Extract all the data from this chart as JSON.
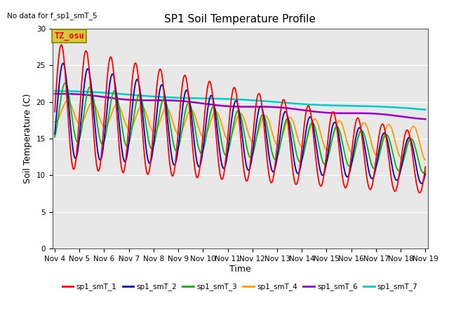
{
  "title": "SP1 Soil Temperature Profile",
  "no_data_text": "No data for f_sp1_smT_5",
  "tz_label": "TZ_osu",
  "ylabel": "Soil Temperature (C)",
  "xlabel": "Time",
  "ylim": [
    0,
    30
  ],
  "yticks": [
    0,
    5,
    10,
    15,
    20,
    25,
    30
  ],
  "xtick_labels": [
    "Nov 4",
    "Nov 5",
    "Nov 6",
    "Nov 7",
    "Nov 8",
    "Nov 9",
    "Nov 10",
    "Nov 11",
    "Nov 12",
    "Nov 13",
    "Nov 14",
    "Nov 15",
    "Nov 16",
    "Nov 17",
    "Nov 18",
    "Nov 19"
  ],
  "colors": {
    "sp1_smT_1": "#ff0000",
    "sp1_smT_2": "#0000cc",
    "sp1_smT_3": "#00bb00",
    "sp1_smT_4": "#ff9900",
    "sp1_smT_6": "#9900cc",
    "sp1_smT_7": "#00cccc"
  },
  "lw": {
    "sp1_smT_1": 1.3,
    "sp1_smT_2": 1.3,
    "sp1_smT_3": 1.3,
    "sp1_smT_4": 1.3,
    "sp1_smT_6": 1.8,
    "sp1_smT_7": 1.8
  },
  "background_color": "#e8e8e8",
  "title_fontsize": 11,
  "axis_fontsize": 9,
  "tick_fontsize": 7.5
}
